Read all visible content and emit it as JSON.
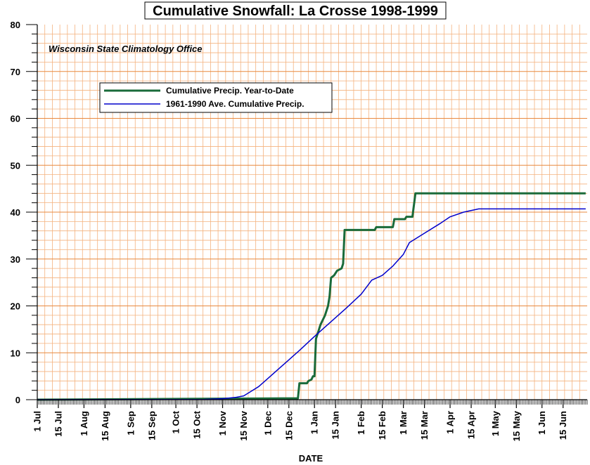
{
  "chart_data": {
    "type": "line",
    "title": "Cumulative Snowfall: La Crosse 1998-1999",
    "xlabel": "DATE",
    "ylabel": "",
    "annotation": "Wisconsin State Climatology Office",
    "ylim": [
      0,
      80
    ],
    "xlim": [
      "1998-07-01",
      "1999-06-30"
    ],
    "grid": true,
    "legend_position": "top-left",
    "y_ticks": [
      "0",
      "10",
      "20",
      "30",
      "40",
      "50",
      "60",
      "70",
      "80"
    ],
    "x_tick_labels": [
      {
        "label": "1 Jul",
        "date": "1998-07-01"
      },
      {
        "label": "15 Jul",
        "date": "1998-07-15"
      },
      {
        "label": "1 Aug",
        "date": "1998-08-01"
      },
      {
        "label": "15 Aug",
        "date": "1998-08-15"
      },
      {
        "label": "1 Sep",
        "date": "1998-09-01"
      },
      {
        "label": "15 Sep",
        "date": "1998-09-15"
      },
      {
        "label": "1 Oct",
        "date": "1998-10-01"
      },
      {
        "label": "15 Oct",
        "date": "1998-10-15"
      },
      {
        "label": "1 Nov",
        "date": "1998-11-01"
      },
      {
        "label": "15 Nov",
        "date": "1998-11-15"
      },
      {
        "label": "1 Dec",
        "date": "1998-12-01"
      },
      {
        "label": "15 Dec",
        "date": "1998-12-15"
      },
      {
        "label": "1 Jan",
        "date": "1999-01-01"
      },
      {
        "label": "15 Jan",
        "date": "1999-01-15"
      },
      {
        "label": "1 Feb",
        "date": "1999-02-01"
      },
      {
        "label": "15 Feb",
        "date": "1999-02-15"
      },
      {
        "label": "1 Mar",
        "date": "1999-03-01"
      },
      {
        "label": "15 Mar",
        "date": "1999-03-15"
      },
      {
        "label": "1 Apr",
        "date": "1999-04-01"
      },
      {
        "label": "15 Apr",
        "date": "1999-04-15"
      },
      {
        "label": "1 May",
        "date": "1999-05-01"
      },
      {
        "label": "15 May",
        "date": "1999-05-15"
      },
      {
        "label": "1 Jun",
        "date": "1999-06-01"
      },
      {
        "label": "15 Jun",
        "date": "1999-06-15"
      }
    ],
    "series": [
      {
        "name": "Cumulative Precip. Year-to-Date",
        "color": "#1a6b3a",
        "points": [
          [
            "1998-07-01",
            0
          ],
          [
            "1998-12-21",
            0.3
          ],
          [
            "1998-12-22",
            3.5
          ],
          [
            "1998-12-27",
            3.5
          ],
          [
            "1998-12-28",
            4.0
          ],
          [
            "1998-12-30",
            4.3
          ],
          [
            "1998-12-31",
            5.0
          ],
          [
            "1999-01-01",
            5.0
          ],
          [
            "1999-01-02",
            13.0
          ],
          [
            "1999-01-03",
            14.0
          ],
          [
            "1999-01-05",
            16.0
          ],
          [
            "1999-01-08",
            18.0
          ],
          [
            "1999-01-10",
            20.0
          ],
          [
            "1999-01-11",
            22.0
          ],
          [
            "1999-01-12",
            26.0
          ],
          [
            "1999-01-14",
            26.5
          ],
          [
            "1999-01-16",
            27.5
          ],
          [
            "1999-01-19",
            28.0
          ],
          [
            "1999-01-20",
            29.0
          ],
          [
            "1999-01-21",
            36.2
          ],
          [
            "1999-02-10",
            36.2
          ],
          [
            "1999-02-11",
            36.8
          ],
          [
            "1999-02-22",
            36.8
          ],
          [
            "1999-02-23",
            38.5
          ],
          [
            "1999-03-02",
            38.5
          ],
          [
            "1999-03-03",
            39.0
          ],
          [
            "1999-03-07",
            39.0
          ],
          [
            "1999-03-09",
            44.0
          ],
          [
            "1999-06-30",
            44.0
          ]
        ]
      },
      {
        "name": "1961-1990 Ave. Cumulative Precip.",
        "color": "#0000cc",
        "points": [
          [
            "1998-07-01",
            0
          ],
          [
            "1998-10-20",
            0.05
          ],
          [
            "1998-11-01",
            0.2
          ],
          [
            "1998-11-10",
            0.5
          ],
          [
            "1998-11-15",
            0.8
          ],
          [
            "1998-11-20",
            1.8
          ],
          [
            "1998-11-25",
            2.8
          ],
          [
            "1998-12-01",
            4.5
          ],
          [
            "1998-12-08",
            6.5
          ],
          [
            "1998-12-15",
            8.5
          ],
          [
            "1998-12-22",
            10.5
          ],
          [
            "1999-01-01",
            13.5
          ],
          [
            "1999-01-08",
            15.5
          ],
          [
            "1999-01-15",
            17.5
          ],
          [
            "1999-01-22",
            19.5
          ],
          [
            "1999-02-01",
            22.5
          ],
          [
            "1999-02-08",
            25.5
          ],
          [
            "1999-02-15",
            26.5
          ],
          [
            "1999-02-22",
            28.5
          ],
          [
            "1999-03-01",
            31.0
          ],
          [
            "1999-03-05",
            33.5
          ],
          [
            "1999-03-15",
            35.5
          ],
          [
            "1999-03-25",
            37.5
          ],
          [
            "1999-04-01",
            39.0
          ],
          [
            "1999-04-10",
            40.0
          ],
          [
            "1999-04-20",
            40.7
          ],
          [
            "1999-06-30",
            40.7
          ]
        ]
      }
    ]
  }
}
